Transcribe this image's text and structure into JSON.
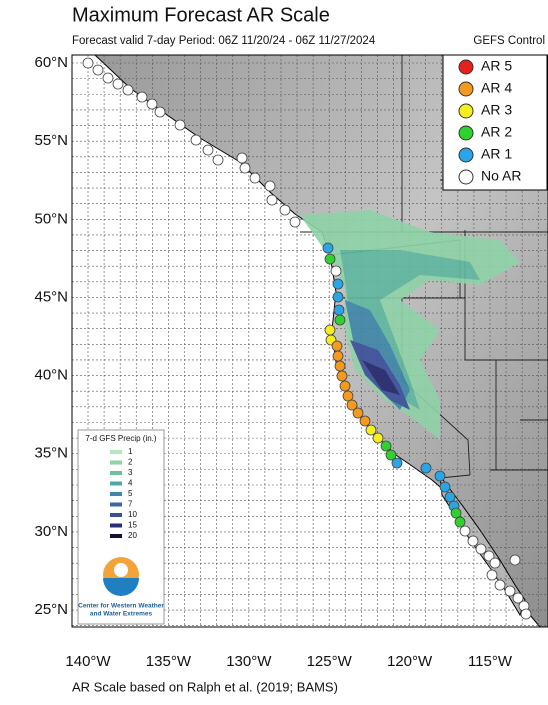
{
  "header": {
    "title": "Maximum Forecast AR Scale",
    "subtitle": "Forecast valid 7-day Period: 06Z 11/20/24 - 06Z 11/27/2024",
    "model": "GEFS Control"
  },
  "ar_legend": [
    "AR 5",
    "AR 4",
    "AR 3",
    "AR 2",
    "AR 1",
    "No AR"
  ],
  "lat_labels": [
    "60°N",
    "55°N",
    "50°N",
    "45°N",
    "40°N",
    "35°N",
    "30°N",
    "25°N"
  ],
  "lon_labels": [
    "140°W",
    "135°W",
    "130°W",
    "125°W",
    "120°W",
    "115°W"
  ],
  "precip_legend": {
    "title": "7-d GFS Precip (in.)",
    "levels": [
      1,
      2,
      3,
      4,
      5,
      7,
      10,
      15,
      20
    ]
  },
  "logo_text": [
    "Center for Western Weather",
    "and Water Extremes"
  ],
  "footer": "AR Scale based on Ralph et al. (2019; BAMS)"
}
